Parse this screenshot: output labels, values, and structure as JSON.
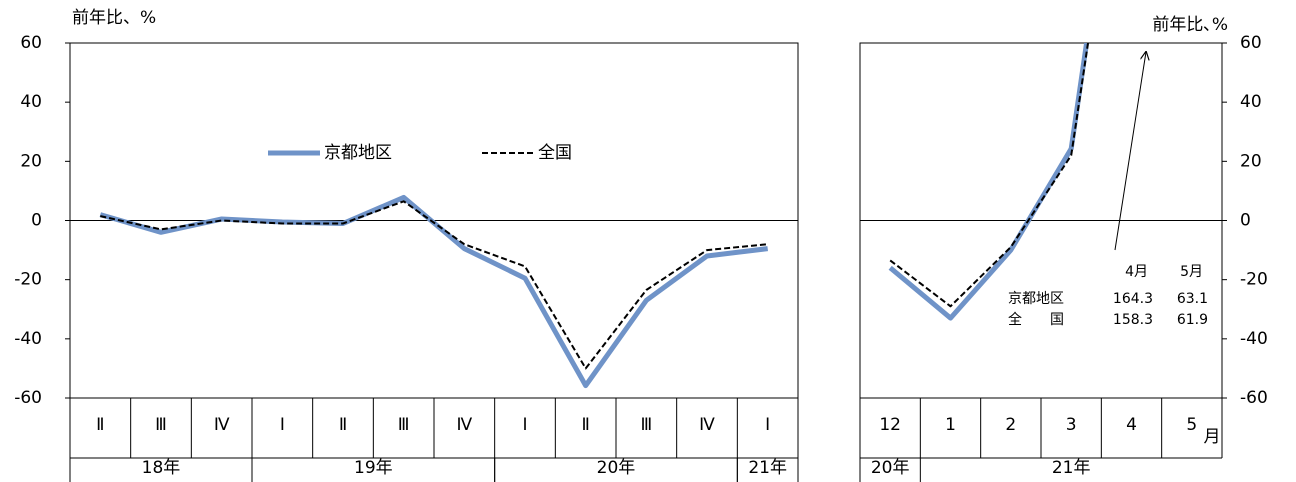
{
  "chart_data": [
    {
      "type": "line",
      "y_label": "前年比、%",
      "categories": [
        "Ⅱ",
        "Ⅲ",
        "Ⅳ",
        "Ⅰ",
        "Ⅱ",
        "Ⅲ",
        "Ⅳ",
        "Ⅰ",
        "Ⅱ",
        "Ⅲ",
        "Ⅳ",
        "Ⅰ"
      ],
      "groups": [
        "18年",
        null,
        null,
        "19年",
        null,
        null,
        null,
        "20年",
        null,
        null,
        null,
        "21年"
      ],
      "series": [
        {
          "name": "京都地区",
          "color": "#6f93c8",
          "values": [
            2,
            -4,
            0.5,
            -0.5,
            -1,
            7.8,
            -9.5,
            -19.5,
            -55.8,
            -27,
            -12,
            -9.5
          ]
        },
        {
          "name": "全国",
          "color": "#000000",
          "values": [
            1.5,
            -3,
            0,
            -1,
            -1,
            6.5,
            -8,
            -15.5,
            -50,
            -23.5,
            -10,
            -8
          ]
        }
      ],
      "ylim": [
        -60,
        60
      ],
      "yticks": [
        -60,
        -40,
        -20,
        0,
        20,
        40,
        60
      ],
      "y_axis_side": "left",
      "legend": "center"
    },
    {
      "type": "line",
      "y_label": "前年比､%",
      "x_unit": "月",
      "categories": [
        "12",
        "1",
        "2",
        "3",
        "4",
        "5"
      ],
      "groups": [
        "20年",
        "21年",
        null,
        null,
        null,
        null
      ],
      "series": [
        {
          "name": "京都地区",
          "color": "#6f93c8",
          "values": [
            -16,
            -33,
            -10,
            24.3,
            164.3,
            63.1
          ]
        },
        {
          "name": "全国",
          "color": "#000000",
          "values": [
            -13.5,
            -29,
            -9,
            22,
            158.3,
            61.9
          ]
        }
      ],
      "ylim": [
        -60,
        60
      ],
      "yticks": [
        -60,
        -40,
        -20,
        0,
        20,
        40,
        60
      ],
      "y_axis_side": "right",
      "annotation": {
        "columns": [
          "4月",
          "5月"
        ],
        "rows": [
          [
            "京都地区",
            "164.3",
            "63.1"
          ],
          [
            "全　　国",
            "158.3",
            "61.9"
          ]
        ]
      }
    }
  ]
}
